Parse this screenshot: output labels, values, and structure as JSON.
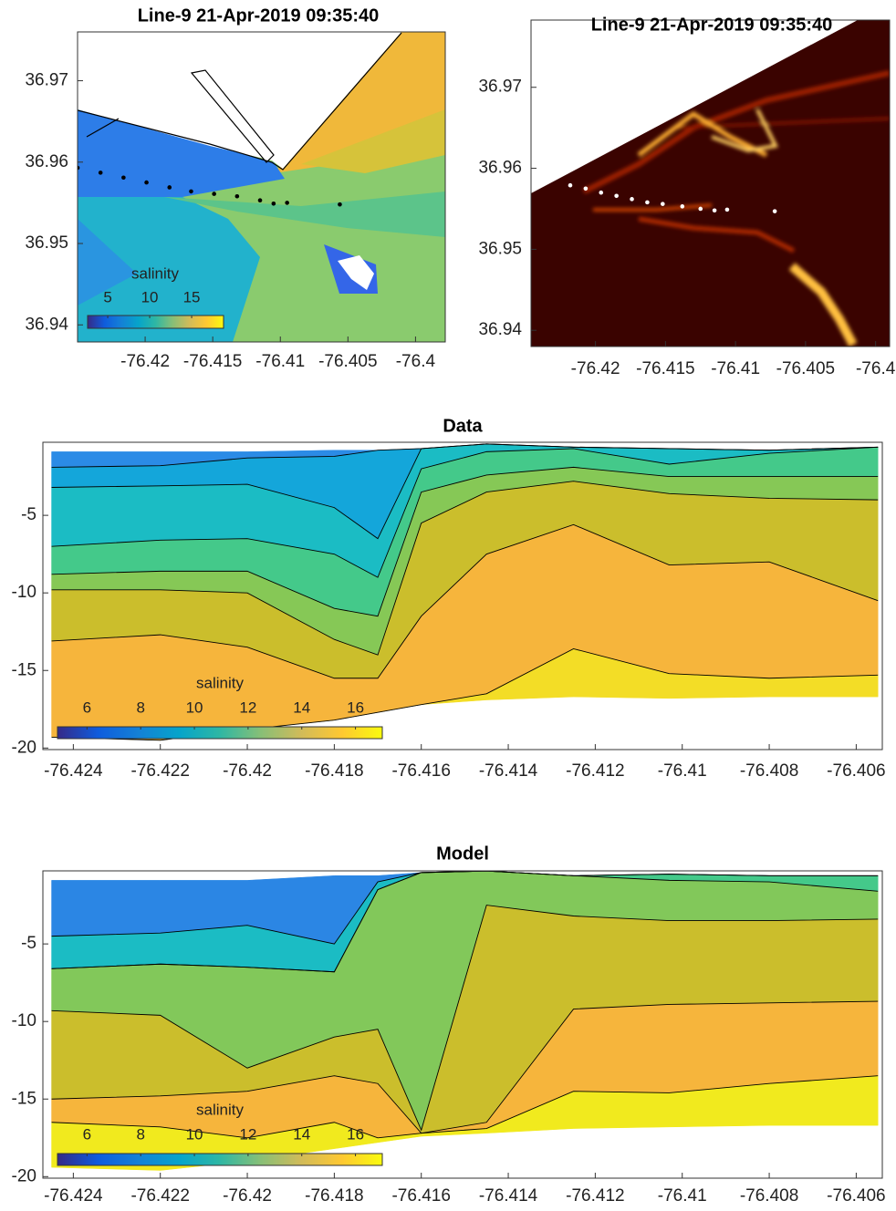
{
  "chart_data": [
    {
      "type": "map",
      "title": "Line-9 21-Apr-2019 09:35:40",
      "xlim": [
        -76.425,
        -76.3978
      ],
      "ylim": [
        36.9379,
        36.976
      ],
      "xticks": [
        -76.42,
        -76.415,
        -76.41,
        -76.405,
        -76.4
      ],
      "yticks": [
        36.94,
        36.95,
        36.96,
        36.97
      ],
      "points": {
        "color": "#000000",
        "x": [
          -76.425,
          -76.4233,
          -76.4216,
          -76.4199,
          -76.4182,
          -76.4166,
          -76.4149,
          -76.4132,
          -76.4115,
          -76.4105,
          -76.4095,
          -76.4056
        ],
        "y": [
          36.9593,
          36.9587,
          36.9581,
          36.9575,
          36.9569,
          36.9564,
          36.9561,
          36.9558,
          36.9553,
          36.9549,
          36.955,
          36.9548
        ]
      },
      "colorbar": {
        "label": "salinity",
        "lim": [
          2.6,
          18.8
        ],
        "ticks": [
          5,
          10,
          15
        ],
        "colors": [
          "#352a87",
          "#0f5cdd",
          "#1481d6",
          "#06a4ca",
          "#2eb7a4",
          "#87bf77",
          "#d1bb59",
          "#fec832",
          "#f9fb0e"
        ]
      }
    },
    {
      "type": "map",
      "title": "Line-9 21-Apr-2019 09:35:40",
      "xlim": [
        -76.4246,
        -76.399
      ],
      "ylim": [
        36.938,
        36.9783
      ],
      "xticks": [
        -76.42,
        -76.415,
        -76.41,
        -76.405,
        -76.4
      ],
      "yticks": [
        36.94,
        36.95,
        36.96,
        36.97
      ],
      "points": {
        "color": "#ffffff",
        "x": [
          -76.4218,
          -76.4207,
          -76.4196,
          -76.4185,
          -76.4174,
          -76.4163,
          -76.4152,
          -76.4138,
          -76.4125,
          -76.4115,
          -76.4106,
          -76.4072
        ],
        "y": [
          36.9579,
          36.9575,
          36.957,
          36.9566,
          36.9562,
          36.9558,
          36.9556,
          36.9553,
          36.955,
          36.9548,
          36.9549,
          36.9547
        ]
      }
    },
    {
      "type": "contour",
      "title": "Data",
      "xlim": [
        -76.4247,
        -76.4054
      ],
      "ylim": [
        -20.1,
        -0.29
      ],
      "xticks": [
        -76.424,
        -76.422,
        -76.42,
        -76.418,
        -76.416,
        -76.414,
        -76.412,
        -76.41,
        -76.408,
        -76.406
      ],
      "yticks": [
        -20,
        -15,
        -10,
        -5
      ],
      "x": [
        -76.4245,
        -76.422,
        -76.42,
        -76.418,
        -76.417,
        -76.416,
        -76.4145,
        -76.4125,
        -76.4103,
        -76.408,
        -76.4055
      ],
      "boundaries": [
        [
          -0.9,
          -0.9,
          -0.9,
          -0.8,
          -0.8,
          -0.7,
          -0.4,
          -0.6,
          -0.7,
          -0.8,
          -0.6
        ],
        [
          -1.9,
          -1.8,
          -1.3,
          -1.2,
          -0.8,
          -0.7,
          -0.4,
          -0.6,
          -0.7,
          -0.8,
          -0.6
        ],
        [
          -3.2,
          -3.1,
          -3.0,
          -4.5,
          -6.5,
          -0.7,
          -0.4,
          -0.6,
          -0.7,
          -0.8,
          -0.6
        ],
        [
          -7,
          -6.6,
          -6.5,
          -7.5,
          -9,
          -2.0,
          -0.9,
          -0.7,
          -1.7,
          -1.0,
          -0.6
        ],
        [
          -8.8,
          -8.6,
          -8.6,
          -11,
          -11.5,
          -3.5,
          -2.4,
          -1.9,
          -2.5,
          -2.5,
          -2.5
        ],
        [
          -9.8,
          -9.8,
          -10,
          -13,
          -14,
          -5.5,
          -3.5,
          -2.8,
          -3.6,
          -3.9,
          -4
        ],
        [
          -13.1,
          -12.7,
          -13.5,
          -15.5,
          -15.5,
          -11.5,
          -7.5,
          -5.6,
          -8.2,
          -8,
          -10.5
        ],
        [
          -19.3,
          -19.5,
          -18.8,
          -18.2,
          -17.7,
          -17.2,
          -16.5,
          -13.6,
          -15.2,
          -15.5,
          -15.3
        ],
        [
          -19.3,
          -19.5,
          -18.8,
          -18.2,
          -17.7,
          -17.2,
          -16.9,
          -16.7,
          -16.8,
          -16.7,
          -16.7
        ]
      ],
      "band_colors": [
        "#2b8be6",
        "#14a6da",
        "#1bbcc4",
        "#44c98a",
        "#86c856",
        "#cbbe2c",
        "#f6b53c",
        "#f3dd26"
      ],
      "colorbar": {
        "label": "salinity",
        "lim": [
          4.9,
          17
        ],
        "ticks": [
          6,
          8,
          10,
          12,
          14,
          16
        ],
        "colors": [
          "#352a87",
          "#0f5cdd",
          "#1481d6",
          "#06a4ca",
          "#2eb7a4",
          "#87bf77",
          "#d1bb59",
          "#fec832",
          "#f9fb0e"
        ]
      }
    },
    {
      "type": "contour",
      "title": "Model",
      "xlim": [
        -76.4247,
        -76.4054
      ],
      "ylim": [
        -20.1,
        -0.29
      ],
      "xticks": [
        -76.424,
        -76.422,
        -76.42,
        -76.418,
        -76.416,
        -76.414,
        -76.412,
        -76.41,
        -76.408,
        -76.406
      ],
      "yticks": [
        -20,
        -15,
        -10,
        -5
      ],
      "x": [
        -76.4245,
        -76.422,
        -76.42,
        -76.418,
        -76.417,
        -76.416,
        -76.4145,
        -76.4125,
        -76.4103,
        -76.408,
        -76.4055
      ],
      "boundaries": [
        [
          -0.9,
          -0.9,
          -0.9,
          -0.6,
          -0.6,
          -0.4,
          -0.3,
          -0.6,
          -0.5,
          -0.6,
          -0.6
        ],
        [
          -4.5,
          -4.3,
          -3.8,
          -5,
          -1.0,
          -0.4,
          -0.3,
          -0.6,
          -0.5,
          -0.6,
          -0.6
        ],
        [
          -6.6,
          -6.3,
          -6.5,
          -6.8,
          -1.5,
          -0.4,
          -0.3,
          -0.6,
          -0.5,
          -0.6,
          -0.6
        ],
        [
          -6.6,
          -6.3,
          -6.5,
          -6.8,
          -1.5,
          -0.4,
          -0.3,
          -0.6,
          -0.9,
          -1.0,
          -1.6
        ],
        [
          -9.3,
          -9.6,
          -13,
          -11,
          -10.5,
          -17,
          -2.5,
          -3.2,
          -3.5,
          -3.5,
          -3.4
        ],
        [
          -15,
          -14.8,
          -14.5,
          -13.5,
          -14,
          -17.2,
          -16.5,
          -9.2,
          -8.9,
          -8.8,
          -8.7
        ],
        [
          -16.5,
          -16.8,
          -17.5,
          -16.5,
          -17.5,
          -17.2,
          -16.9,
          -14.5,
          -14.6,
          -14,
          -13.5
        ],
        [
          -19.4,
          -19.6,
          -19,
          -18.2,
          -17.8,
          -17.4,
          -17.2,
          -16.9,
          -16.8,
          -16.7,
          -16.7
        ]
      ],
      "band_colors": [
        "#2b86e4",
        "#1bbcc4",
        "#44c98a",
        "#82c85a",
        "#cbbe2c",
        "#f6b53c",
        "#f1ea1e"
      ],
      "colorbar": {
        "label": "salinity",
        "lim": [
          4.9,
          17
        ],
        "ticks": [
          6,
          8,
          10,
          12,
          14,
          16
        ],
        "colors": [
          "#352a87",
          "#0f5cdd",
          "#1481d6",
          "#06a4ca",
          "#2eb7a4",
          "#87bf77",
          "#d1bb59",
          "#fec832",
          "#f9fb0e"
        ]
      }
    }
  ]
}
